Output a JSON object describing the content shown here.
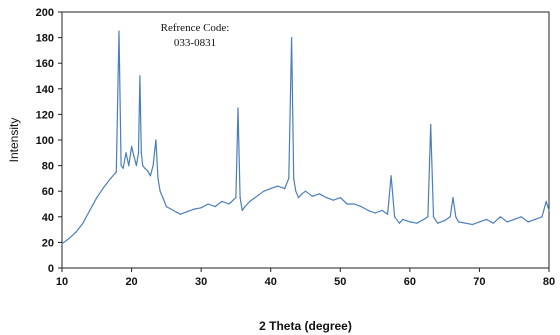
{
  "chart_data": {
    "type": "line",
    "title": "",
    "xlabel": "2 Theta (degree)",
    "ylabel": "Intensity",
    "xlim": [
      10,
      80
    ],
    "ylim": [
      0,
      200
    ],
    "x_ticks": [
      10,
      20,
      30,
      40,
      50,
      60,
      70,
      80
    ],
    "y_ticks": [
      0,
      20,
      40,
      60,
      80,
      100,
      120,
      140,
      160,
      180,
      200
    ],
    "grid": false,
    "legend": "none",
    "annotation": [
      "Refrence Code:",
      "033-0831"
    ],
    "series": [
      {
        "color": "#4a7ebb",
        "x": [
          10,
          11,
          12,
          13,
          14,
          15,
          16,
          17,
          17.8,
          18.2,
          18.5,
          18.8,
          19.2,
          19.6,
          20,
          20.3,
          20.7,
          21.0,
          21.2,
          21.4,
          21.6,
          21.9,
          22.3,
          22.7,
          23.1,
          23.5,
          23.8,
          24.1,
          24.5,
          25,
          26,
          27,
          28,
          29,
          30,
          31,
          32,
          33,
          34,
          35,
          35.3,
          35.6,
          35.9,
          36.3,
          37,
          38,
          39,
          40,
          41,
          42,
          42.6,
          43.0,
          43.3,
          43.6,
          44.0,
          44.5,
          45,
          46,
          47,
          48,
          49,
          50,
          51,
          52,
          53,
          54,
          55,
          56,
          56.8,
          57.3,
          57.8,
          58.5,
          59,
          60,
          61,
          62,
          62.6,
          63.0,
          63.4,
          64,
          65,
          65.8,
          66.2,
          66.6,
          67,
          68,
          69,
          70,
          71,
          72,
          73,
          74,
          75,
          76,
          77,
          78,
          79,
          79.6,
          80
        ],
        "y": [
          19,
          23,
          28,
          35,
          45,
          55,
          63,
          70,
          75,
          185,
          80,
          78,
          90,
          80,
          95,
          88,
          80,
          90,
          150,
          90,
          80,
          78,
          76,
          72,
          80,
          100,
          70,
          60,
          55,
          48,
          45,
          42,
          44,
          46,
          47,
          50,
          48,
          52,
          50,
          55,
          125,
          55,
          45,
          48,
          52,
          56,
          60,
          62,
          64,
          62,
          70,
          180,
          70,
          60,
          55,
          58,
          60,
          56,
          58,
          55,
          53,
          55,
          50,
          50,
          48,
          45,
          43,
          45,
          42,
          72,
          40,
          35,
          38,
          36,
          35,
          38,
          40,
          112,
          40,
          35,
          37,
          40,
          55,
          40,
          36,
          35,
          34,
          36,
          38,
          35,
          40,
          36,
          38,
          40,
          36,
          38,
          40,
          52,
          45
        ]
      }
    ]
  }
}
